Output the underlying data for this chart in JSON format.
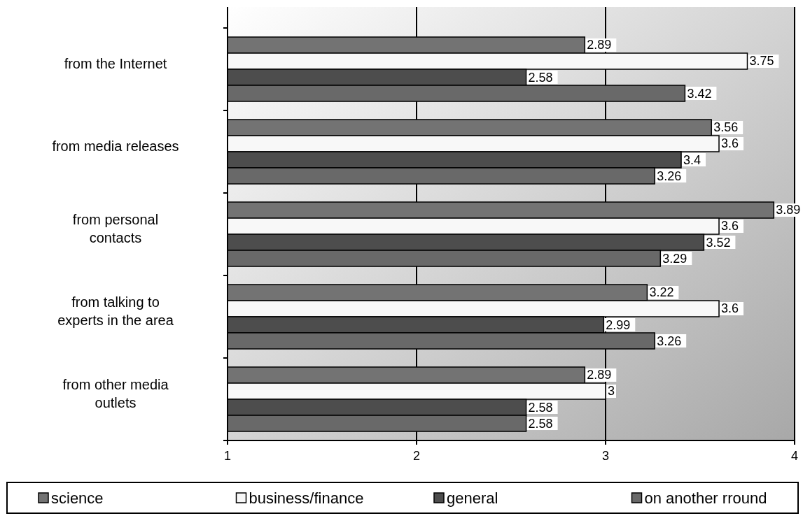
{
  "chart_data": {
    "type": "bar",
    "orientation": "horizontal",
    "categories": [
      "from the Internet",
      "from media releases",
      "from personal contacts",
      "from talking to experts in the area",
      "from other media outlets"
    ],
    "series": [
      {
        "name": "science",
        "color": "#737373",
        "values": [
          2.89,
          3.56,
          3.89,
          3.22,
          2.89
        ]
      },
      {
        "name": "business/finance",
        "color": "#f8f8f8",
        "values": [
          3.75,
          3.6,
          3.6,
          3.6,
          3
        ]
      },
      {
        "name": "general",
        "color": "#4d4d4d",
        "values": [
          2.58,
          3.4,
          3.52,
          2.99,
          2.58
        ]
      },
      {
        "name": "on another rround",
        "color": "#696969",
        "values": [
          3.42,
          3.26,
          3.29,
          3.26,
          2.58
        ]
      }
    ],
    "xlim": [
      1,
      4
    ],
    "xticks": [
      1,
      2,
      3,
      4
    ],
    "grid": "x",
    "data_labels": true,
    "legend": "bottom"
  }
}
